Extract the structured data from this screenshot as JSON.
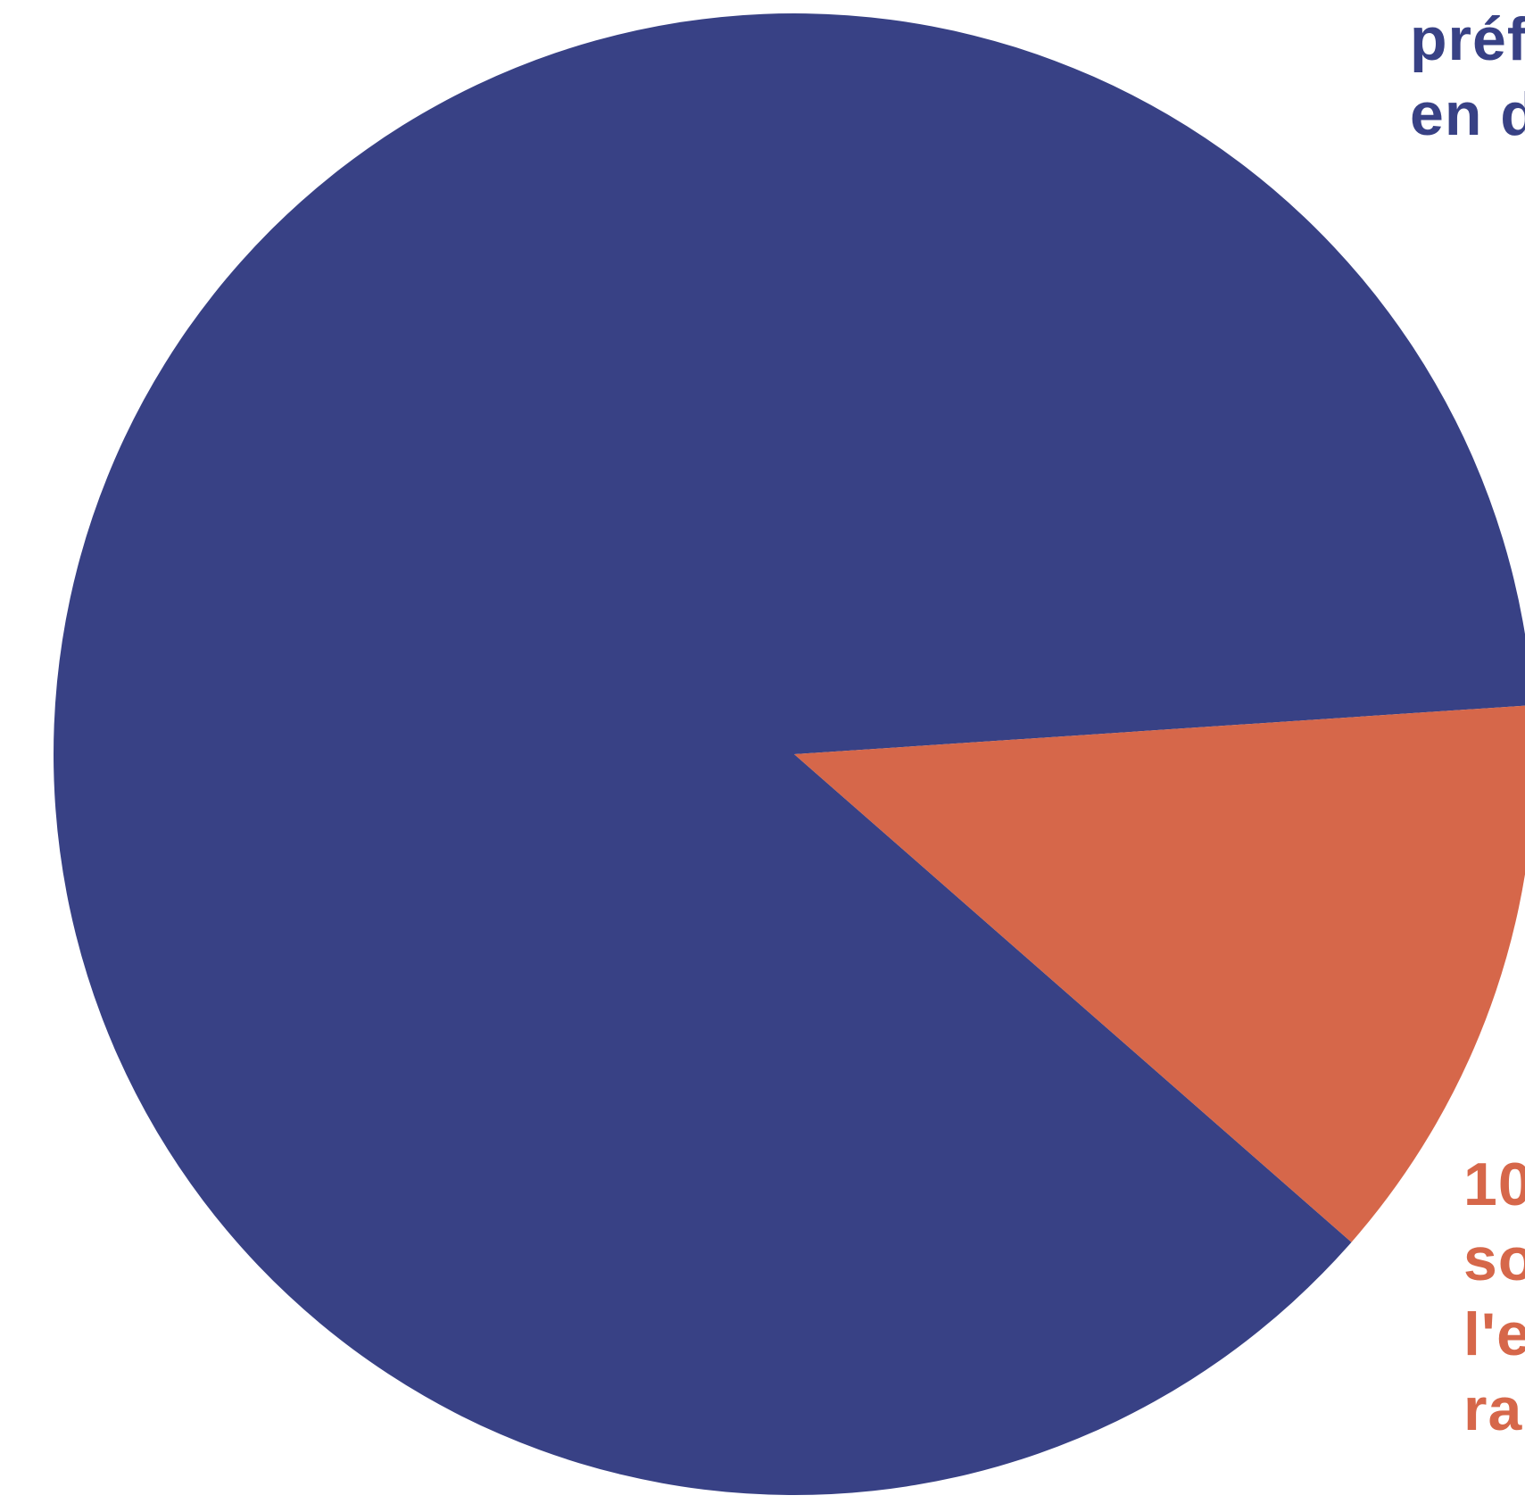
{
  "chart_data": {
    "type": "pie",
    "slices": [
      {
        "label_lines": [
          "préf",
          "en d"
        ],
        "value": 87.5,
        "color": "#384185"
      },
      {
        "label_lines": [
          "10",
          "so",
          "l'e",
          "ra"
        ],
        "value": 12.5,
        "color": "#d6674a"
      }
    ]
  }
}
